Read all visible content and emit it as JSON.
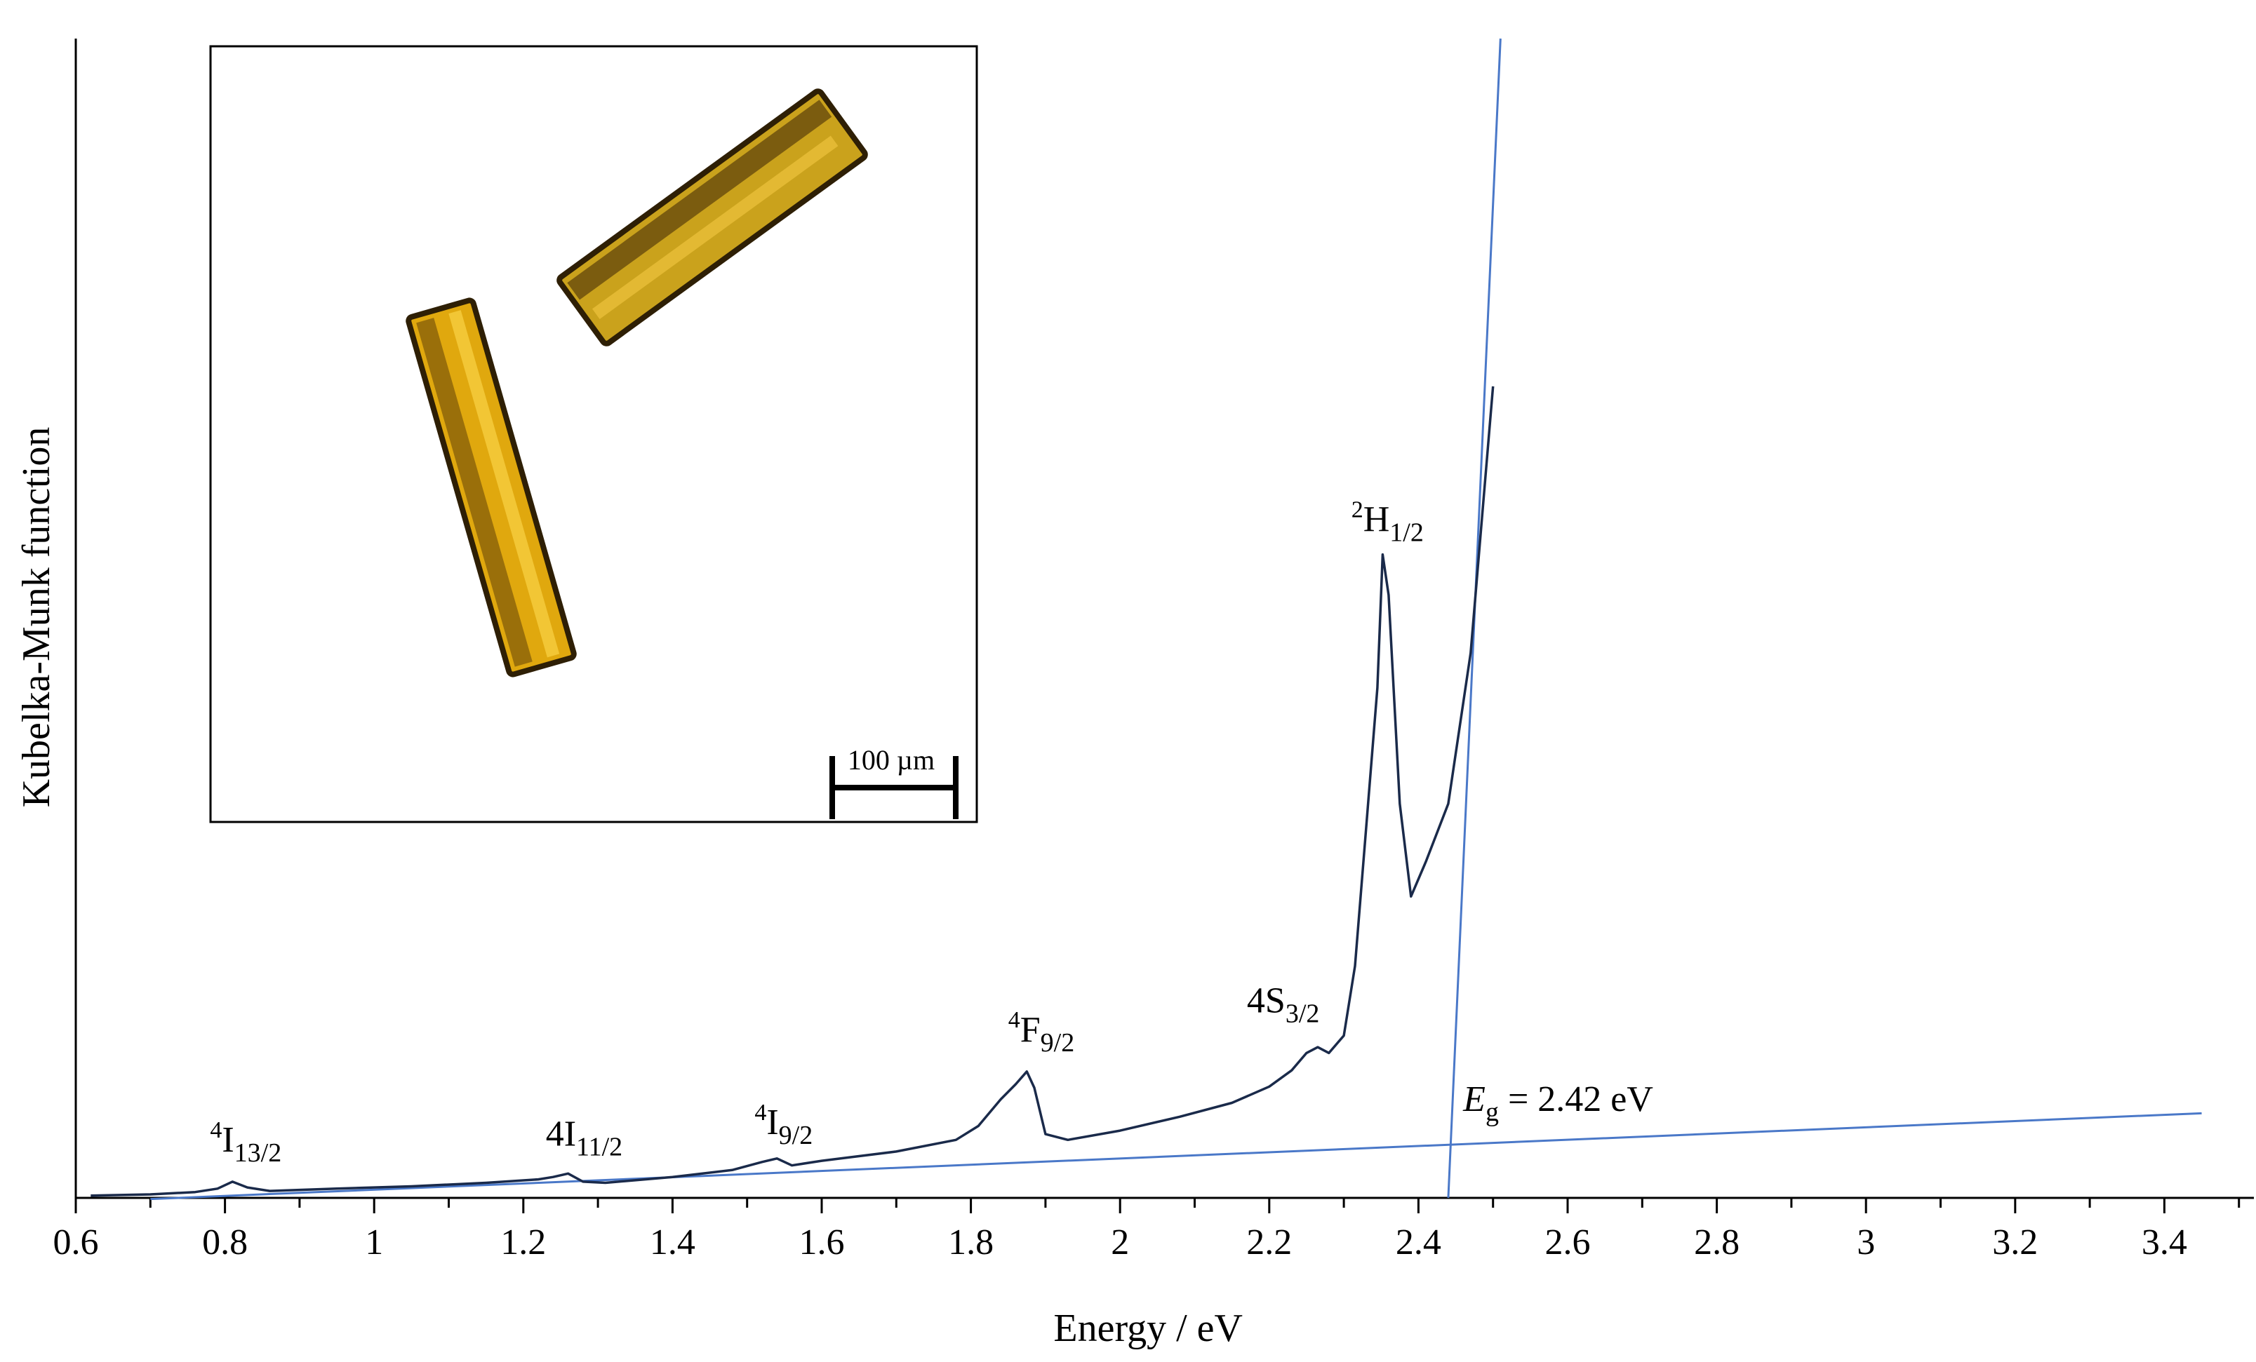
{
  "chart_data": {
    "type": "line",
    "xlabel": "Energy / eV",
    "ylabel": "Kubelka-Munk function",
    "xlim": [
      0.6,
      3.5
    ],
    "ylim": [
      0,
      1
    ],
    "x_ticks": [
      "0.6",
      "0.8",
      "1",
      "1.2",
      "1.4",
      "1.6",
      "1.8",
      "2",
      "2.2",
      "2.4",
      "2.6",
      "2.8",
      "3",
      "3.2",
      "3.4"
    ],
    "y_ticks": [],
    "grid": false,
    "series": [
      {
        "color": "#1a2a4a",
        "x": [
          0.62,
          0.7,
          0.76,
          0.79,
          0.81,
          0.83,
          0.86,
          0.95,
          1.05,
          1.15,
          1.22,
          1.24,
          1.26,
          1.28,
          1.31,
          1.4,
          1.48,
          1.52,
          1.54,
          1.56,
          1.6,
          1.7,
          1.78,
          1.81,
          1.84,
          1.86,
          1.875,
          1.885,
          1.9,
          1.93,
          2.0,
          2.08,
          2.15,
          2.2,
          2.23,
          2.25,
          2.265,
          2.28,
          2.3,
          2.315,
          2.33,
          2.345,
          2.352,
          2.36,
          2.375,
          2.39,
          2.41,
          2.44,
          2.47,
          2.5
        ],
        "y": [
          0.002,
          0.003,
          0.005,
          0.008,
          0.014,
          0.009,
          0.006,
          0.008,
          0.01,
          0.013,
          0.016,
          0.018,
          0.021,
          0.014,
          0.013,
          0.018,
          0.024,
          0.031,
          0.034,
          0.028,
          0.032,
          0.04,
          0.05,
          0.062,
          0.085,
          0.098,
          0.109,
          0.095,
          0.055,
          0.05,
          0.058,
          0.07,
          0.082,
          0.096,
          0.11,
          0.125,
          0.13,
          0.125,
          0.14,
          0.2,
          0.32,
          0.44,
          0.555,
          0.52,
          0.34,
          0.26,
          0.29,
          0.34,
          0.47,
          0.7
        ]
      }
    ],
    "fit_lines": [
      {
        "color": "#4a78c8",
        "x": [
          0.7,
          3.45
        ],
        "y": [
          -0.001,
          0.073
        ]
      },
      {
        "color": "#4a78c8",
        "x": [
          2.44,
          2.51
        ],
        "y": [
          0.0,
          1.0
        ]
      }
    ],
    "annotations": [
      {
        "sup": "4",
        "main": "I",
        "sub": "13/2",
        "x": 0.78,
        "y": 0.04
      },
      {
        "sup": "",
        "main": "4I",
        "sub": "11/2",
        "x": 1.23,
        "y": 0.045
      },
      {
        "sup": "4",
        "main": "I",
        "sub": "9/2",
        "x": 1.51,
        "y": 0.055
      },
      {
        "sup": "4",
        "main": "F",
        "sub": "9/2",
        "x": 1.85,
        "y": 0.135
      },
      {
        "sup": "",
        "main": "4S",
        "sub": "3/2",
        "x": 2.17,
        "y": 0.16
      },
      {
        "sup": "2",
        "main": "H",
        "sub": "1/2",
        "x": 2.31,
        "y": 0.575
      }
    ],
    "eg_label": {
      "italic": "E",
      "sub": "g",
      "rest": " = 2.42 eV",
      "x": 2.46,
      "y": 0.075
    },
    "inset": {
      "scale_bar_label": "100 µm",
      "crystal_colors": [
        "#d4a017",
        "#3a2a08",
        "#f0c030"
      ]
    }
  }
}
